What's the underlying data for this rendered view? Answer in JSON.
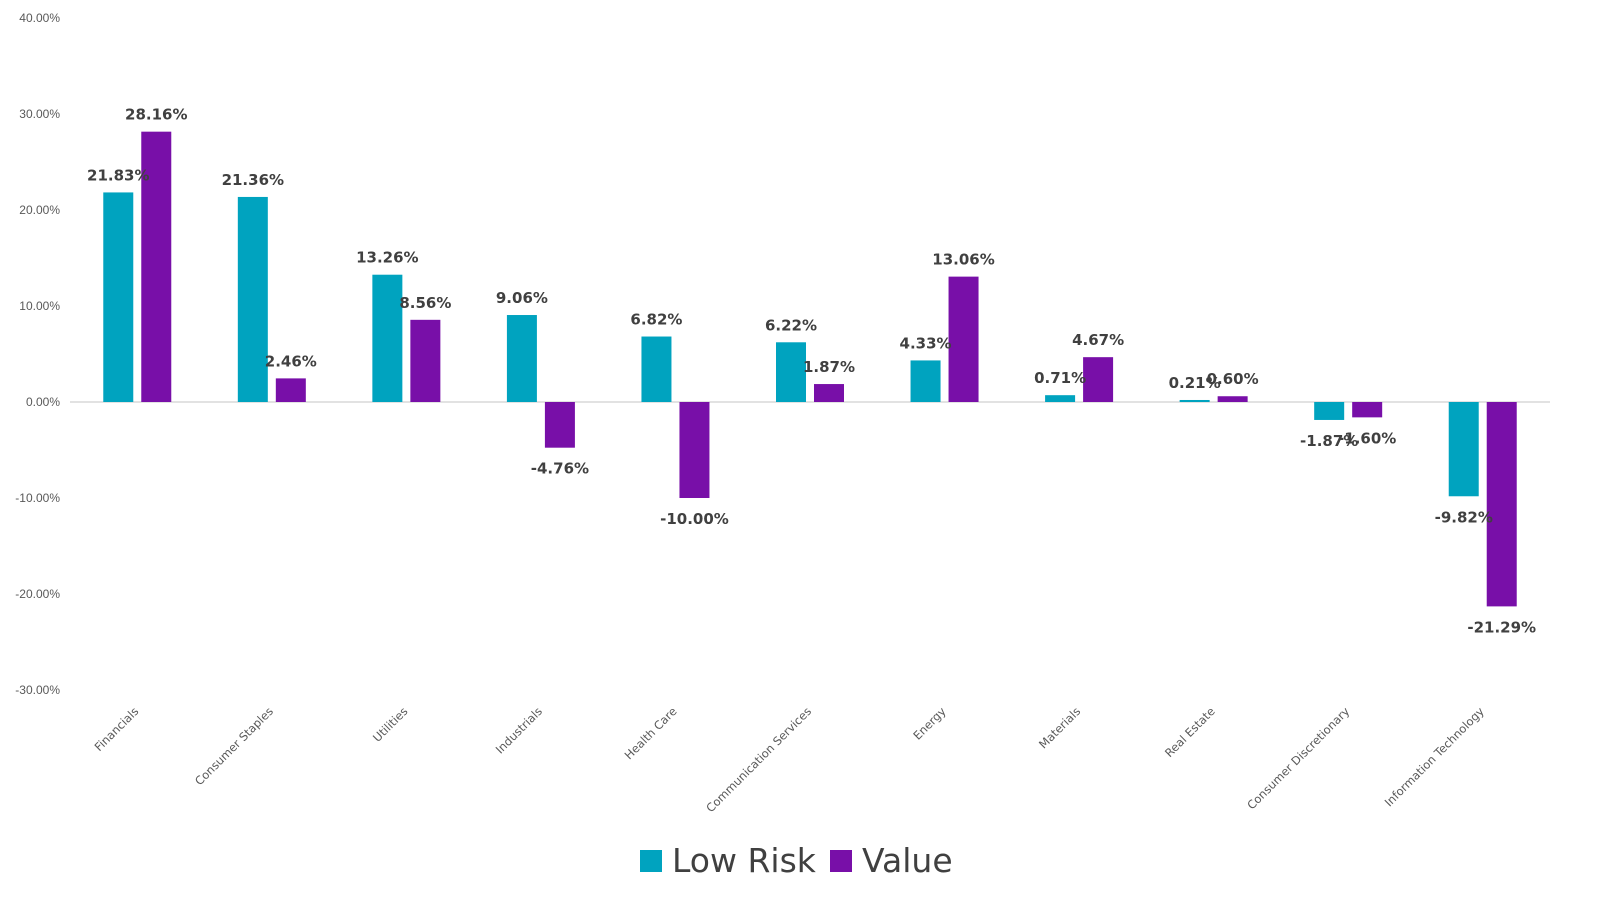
{
  "chart_data": {
    "type": "bar",
    "title": "",
    "xlabel": "",
    "ylabel": "",
    "ylim": [
      -30,
      40
    ],
    "yticks": [
      40,
      30,
      20,
      10,
      0,
      -10,
      -20,
      -30
    ],
    "ytick_labels": [
      "40.00%",
      "30.00%",
      "20.00%",
      "10.00%",
      "0.00%",
      "-10.00%",
      "-20.00%",
      "-30.00%"
    ],
    "grid": false,
    "legend_position": "bottom",
    "categories": [
      "Financials",
      "Consumer Staples",
      "Utilities",
      "Industrials",
      "Health Care",
      "Communication Services",
      "Energy",
      "Materials",
      "Real Estate",
      "Consumer Discretionary",
      "Information Technology"
    ],
    "series": [
      {
        "name": "Low Risk",
        "color": "#00A3BF",
        "values": [
          21.83,
          21.36,
          13.26,
          9.06,
          6.82,
          6.22,
          4.33,
          0.71,
          0.21,
          -1.87,
          -9.82
        ],
        "labels": [
          "21.83%",
          "21.36%",
          "13.26%",
          "9.06%",
          "6.82%",
          "6.22%",
          "4.33%",
          "0.71%",
          "0.21%",
          "-1.87%",
          "-9.82%"
        ]
      },
      {
        "name": "Value",
        "color": "#780FA8",
        "values": [
          28.16,
          2.46,
          8.56,
          -4.76,
          -10.0,
          1.87,
          13.06,
          4.67,
          0.6,
          -1.6,
          -21.29
        ],
        "labels": [
          "28.16%",
          "2.46%",
          "8.56%",
          "-4.76%",
          "-10.00%",
          "1.87%",
          "13.06%",
          "4.67%",
          "0.60%",
          "-1.60%",
          "-21.29%"
        ]
      }
    ]
  }
}
